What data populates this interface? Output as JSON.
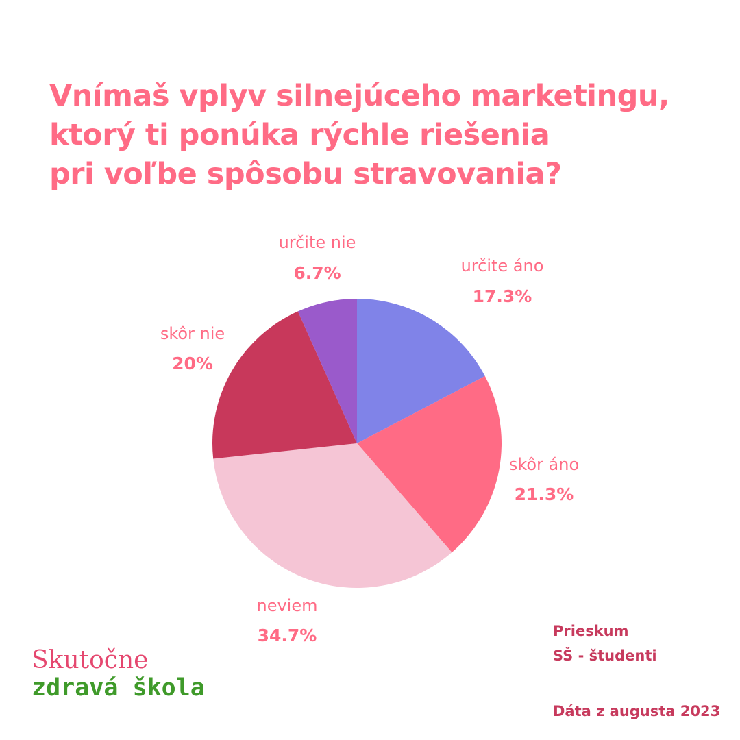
{
  "title_lines": [
    "Vnímaš vplyv silnejúceho marketingu,",
    "ktorý ti ponúka rýchle riešenia",
    "pri voľbe spôsobu stravovania?"
  ],
  "chart_data": {
    "type": "pie",
    "title": "Vnímaš vplyv silnejúceho marketingu, ktorý ti ponúka rýchle riešenia pri voľbe spôsobu stravovania?",
    "start_angle_deg": 0,
    "direction": "clockwise",
    "slices": [
      {
        "label": "určite áno",
        "value": 17.3,
        "display": "17.3%",
        "color": "#8083e8"
      },
      {
        "label": "skôr áno",
        "value": 21.3,
        "display": "21.3%",
        "color": "#ff6b85"
      },
      {
        "label": "neviem",
        "value": 34.7,
        "display": "34.7%",
        "color": "#f5c5d5"
      },
      {
        "label": "skôr nie",
        "value": 20,
        "display": "20%",
        "color": "#c8385b"
      },
      {
        "label": "určite nie",
        "value": 6.7,
        "display": "6.7%",
        "color": "#9a5acb"
      }
    ]
  },
  "logo": {
    "line1": "Skutočne",
    "line2": "zdravá škola"
  },
  "survey": {
    "line1": "Prieskum",
    "line2": "SŠ - študenti"
  },
  "date_note": "Dáta z augusta 2023",
  "colors": {
    "accent": "#ff6b85",
    "note": "#c73a5d",
    "logo_red": "#e5476f",
    "logo_green": "#3f9a2a"
  }
}
